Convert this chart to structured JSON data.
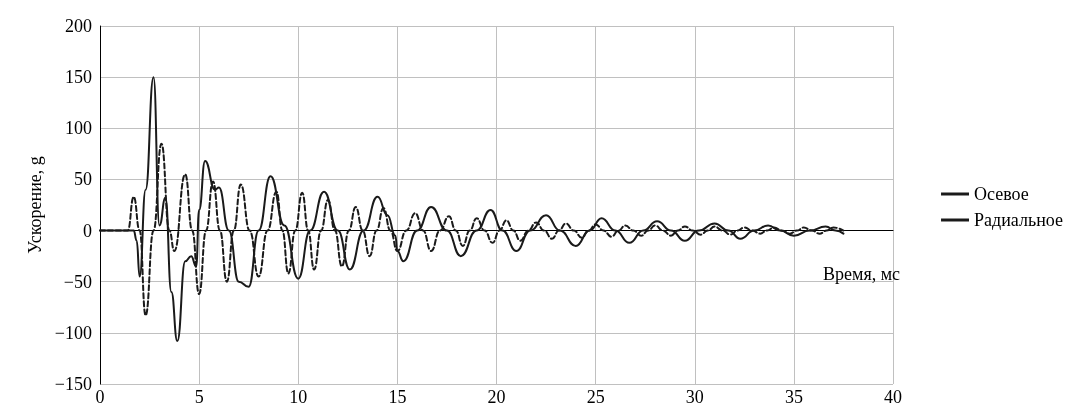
{
  "chart_data": {
    "type": "line",
    "xlabel": "Время, мс",
    "ylabel": "Ускорение, g",
    "xlim": [
      0,
      40
    ],
    "xticks": [
      0,
      5,
      10,
      15,
      20,
      25,
      30,
      35,
      40
    ],
    "ylim": [
      -150,
      200
    ],
    "yticks": [
      -150,
      -100,
      -50,
      0,
      50,
      100,
      150,
      200
    ],
    "grid": true,
    "legend": "right",
    "marker": "none",
    "series": [
      {
        "name": "Осевое",
        "color": "#1a1a1a",
        "line_style": "solid",
        "x": [
          0,
          1.7,
          1.85,
          2.0,
          2.3,
          2.7,
          3.0,
          3.3,
          3.6,
          3.9,
          4.3,
          4.6,
          4.85,
          5.0,
          5.3,
          5.8,
          6.0,
          6.5,
          7.0,
          7.5,
          8.0,
          8.6,
          9.3,
          10.0,
          10.6,
          11.3,
          12.0,
          12.6,
          13.3,
          14.0,
          14.5,
          14.9,
          15.0,
          15.3,
          16.0,
          16.7,
          17.5,
          18.2,
          19.0,
          19.7,
          20.3,
          21.0,
          21.7,
          22.5,
          23.2,
          24.0,
          24.7,
          25.3,
          26.0,
          26.7,
          27.4,
          28.1,
          28.8,
          29.5,
          30.2,
          31.0,
          31.7,
          32.3,
          33.0,
          33.7,
          34.3,
          35.0,
          35.8,
          36.6,
          37.1,
          37.5
        ],
        "values": [
          0,
          0,
          -10,
          -45,
          40,
          150,
          5,
          32,
          -60,
          -108,
          -30,
          -25,
          -35,
          20,
          68,
          40,
          42,
          0,
          -50,
          -55,
          0,
          53,
          5,
          -47,
          0,
          38,
          0,
          -38,
          0,
          33,
          15,
          -5,
          -20,
          -30,
          0,
          23,
          0,
          -25,
          0,
          20,
          0,
          -20,
          0,
          15,
          0,
          -15,
          0,
          12,
          0,
          -12,
          0,
          9,
          0,
          -10,
          0,
          7,
          0,
          -8,
          0,
          5,
          0,
          -5,
          0,
          4,
          0,
          -3
        ]
      },
      {
        "name": "Радиальное",
        "color": "#1a1a1a",
        "line_style": "dashed",
        "x": [
          0,
          1.4,
          1.7,
          2.0,
          2.3,
          2.7,
          3.1,
          3.5,
          3.75,
          4.3,
          4.65,
          5.0,
          5.35,
          5.7,
          6.05,
          6.4,
          6.75,
          7.1,
          7.55,
          8.0,
          8.45,
          8.9,
          9.2,
          9.5,
          9.85,
          10.2,
          10.5,
          10.8,
          11.15,
          11.5,
          11.85,
          12.2,
          12.55,
          12.9,
          13.25,
          13.6,
          13.95,
          14.3,
          14.65,
          15.0,
          15.45,
          15.9,
          16.3,
          16.7,
          17.15,
          17.6,
          17.95,
          18.3,
          18.65,
          19.0,
          19.4,
          19.8,
          20.15,
          20.5,
          20.85,
          21.2,
          21.6,
          22.0,
          22.4,
          22.8,
          23.15,
          23.5,
          23.9,
          24.3,
          24.65,
          25.0,
          25.4,
          25.8,
          26.15,
          26.5,
          26.9,
          27.3,
          27.65,
          28.0,
          28.4,
          28.8,
          29.15,
          29.5,
          29.9,
          30.3,
          30.65,
          31.0,
          31.4,
          31.8,
          32.15,
          32.5,
          32.9,
          33.3,
          33.65,
          34.0,
          34.4,
          34.8,
          35.15,
          35.5,
          35.9,
          36.3,
          36.65,
          37.0,
          37.5
        ],
        "values": [
          0,
          0,
          33,
          0,
          -83,
          0,
          85,
          0,
          -20,
          55,
          0,
          -62,
          0,
          48,
          0,
          -50,
          0,
          45,
          0,
          -45,
          0,
          38,
          0,
          -42,
          0,
          37,
          0,
          -38,
          0,
          30,
          0,
          -35,
          0,
          23,
          0,
          -25,
          0,
          22,
          0,
          -20,
          0,
          17,
          0,
          -20,
          0,
          14,
          0,
          -15,
          0,
          12,
          0,
          -12,
          0,
          10,
          0,
          -10,
          0,
          8,
          0,
          -8,
          0,
          7,
          0,
          -7,
          0,
          6,
          0,
          -6,
          0,
          5,
          0,
          -5,
          0,
          5,
          0,
          -5,
          0,
          4,
          0,
          -4,
          0,
          4,
          0,
          -4,
          0,
          3,
          0,
          -3,
          0,
          3,
          0,
          -3,
          0,
          3,
          0,
          -3,
          0,
          3,
          0
        ]
      }
    ]
  }
}
